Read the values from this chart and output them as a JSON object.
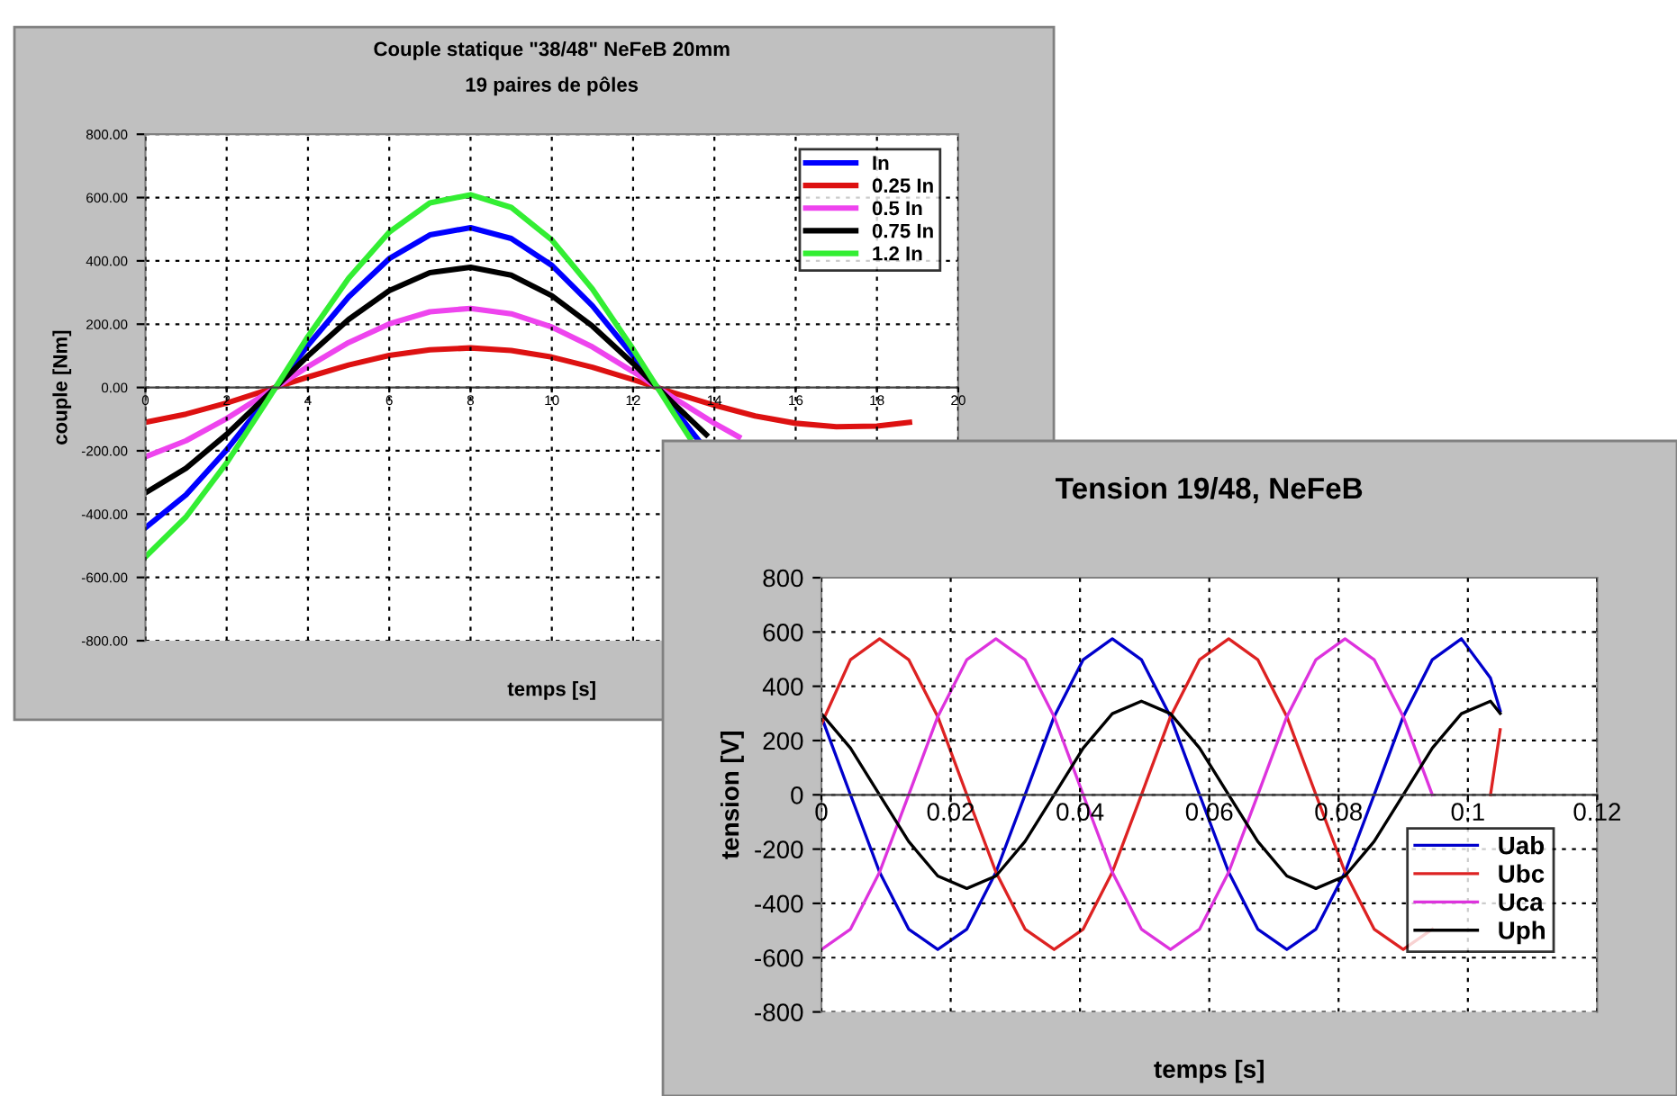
{
  "chart_data": [
    {
      "type": "line",
      "title": "Couple statique \"38/48\" NeFeB 20mm",
      "subtitle": "19 paires de pôles",
      "xlabel": "temps [s]",
      "ylabel": "couple [Nm]",
      "xlim": [
        0,
        20
      ],
      "xticks": [
        0,
        2,
        4,
        6,
        8,
        10,
        12,
        14,
        16,
        18,
        20
      ],
      "ylim": [
        -800,
        800
      ],
      "yticks": [
        {
          "value": -800,
          "label": "-800.00"
        },
        {
          "value": -600,
          "label": "-600.00"
        },
        {
          "value": -400,
          "label": "-400.00"
        },
        {
          "value": -200,
          "label": "-200.00"
        },
        {
          "value": 0,
          "label": "0.00"
        },
        {
          "value": 200,
          "label": "200.00"
        },
        {
          "value": 400,
          "label": "400.00"
        },
        {
          "value": 600,
          "label": "600.00"
        },
        {
          "value": 800,
          "label": "800.00"
        }
      ],
      "grid": true,
      "legend": "top right",
      "marker": "none",
      "line_style": "solid",
      "series": [
        {
          "name": "In",
          "color": "#0000ff",
          "x": [
            0,
            1,
            2,
            3,
            4,
            5,
            6,
            7,
            8,
            9,
            10,
            11,
            12,
            13,
            13.6
          ],
          "values": [
            -443,
            -339,
            -197,
            -34,
            133,
            286,
            407,
            482,
            505,
            471,
            386,
            258,
            100,
            -67,
            -165
          ]
        },
        {
          "name": "0.25 In",
          "color": "#dd1111",
          "x": [
            0,
            1,
            2,
            3,
            4,
            5,
            6,
            7,
            8,
            9,
            10,
            11,
            12,
            13,
            14,
            15,
            16,
            17,
            18,
            18.8
          ],
          "values": [
            -110,
            -84,
            -49,
            -8,
            33,
            71,
            101,
            119,
            125,
            117,
            96,
            64,
            25,
            -17,
            -56,
            -90,
            -113,
            -124,
            -122,
            -110
          ]
        },
        {
          "name": "0.5 In",
          "color": "#ee44ee",
          "x": [
            0,
            1,
            2,
            3,
            4,
            5,
            6,
            7,
            8,
            9,
            10,
            11,
            12,
            13,
            14,
            14.6
          ],
          "values": [
            -219,
            -168,
            -98,
            -17,
            66,
            142,
            201,
            239,
            250,
            233,
            191,
            128,
            50,
            -33,
            -113,
            -156
          ]
        },
        {
          "name": "0.75 In",
          "color": "#000000",
          "x": [
            0,
            1,
            2,
            3,
            4,
            5,
            6,
            7,
            8,
            9,
            10,
            11,
            12,
            13,
            13.8
          ],
          "values": [
            -333,
            -255,
            -148,
            -25,
            100,
            215,
            306,
            363,
            380,
            355,
            290,
            194,
            76,
            -51,
            -149
          ]
        },
        {
          "name": "1.2 In",
          "color": "#33ee33",
          "x": [
            0,
            1,
            2,
            3,
            4,
            5,
            6,
            7,
            8,
            9,
            10,
            11,
            12,
            13,
            13.4
          ],
          "values": [
            -535,
            -409,
            -238,
            -41,
            161,
            345,
            491,
            583,
            609,
            569,
            466,
            311,
            121,
            -81,
            -160
          ]
        }
      ]
    },
    {
      "type": "line",
      "title": "Tension 19/48, NeFeB",
      "xlabel": "temps [s]",
      "ylabel": "tension [V]",
      "xlim": [
        0,
        0.12
      ],
      "xticks": [
        0,
        0.02,
        0.04,
        0.06,
        0.08,
        0.1,
        0.12
      ],
      "ylim": [
        -800,
        800
      ],
      "yticks": [
        -800,
        -600,
        -400,
        -200,
        0,
        200,
        400,
        600,
        800
      ],
      "grid": true,
      "legend": "bottom right",
      "marker": "none",
      "line_style": "solid",
      "x": [
        0,
        0.0045,
        0.009,
        0.0135,
        0.018,
        0.0225,
        0.027,
        0.0315,
        0.036,
        0.0405,
        0.045,
        0.0495,
        0.054,
        0.0585,
        0.063,
        0.0675,
        0.072,
        0.0765,
        0.081,
        0.0855,
        0.09,
        0.0945,
        0.099,
        0.1035,
        0.105
      ],
      "series": [
        {
          "name": "Uab",
          "color": "#0000cc",
          "values": [
            288,
            0,
            -285,
            -495,
            -570,
            -495,
            -285,
            0,
            288,
            498,
            575,
            498,
            288,
            0,
            -285,
            -495,
            -570,
            -495,
            -285,
            0,
            288,
            498,
            575,
            430,
            310
          ]
        },
        {
          "name": "Ubc",
          "color": "#dd2222",
          "values": [
            260,
            498,
            575,
            498,
            288,
            0,
            -285,
            -495,
            -570,
            -495,
            -285,
            0,
            288,
            498,
            575,
            498,
            288,
            0,
            -285,
            -495,
            -570,
            -495,
            null,
            0,
            240
          ]
        },
        {
          "name": "Uca",
          "color": "#dd33dd",
          "values": [
            -570,
            -495,
            -285,
            0,
            288,
            498,
            575,
            498,
            288,
            0,
            -285,
            -495,
            -570,
            -495,
            -285,
            0,
            288,
            498,
            575,
            498,
            288,
            0,
            null,
            null,
            null
          ]
        },
        {
          "name": "Uph",
          "color": "#000000",
          "values": [
            299,
            172,
            0,
            -172,
            -299,
            -345,
            -299,
            -172,
            0,
            172,
            299,
            345,
            299,
            172,
            0,
            -172,
            -299,
            -345,
            -299,
            -172,
            0,
            172,
            299,
            345,
            300
          ]
        }
      ]
    }
  ]
}
